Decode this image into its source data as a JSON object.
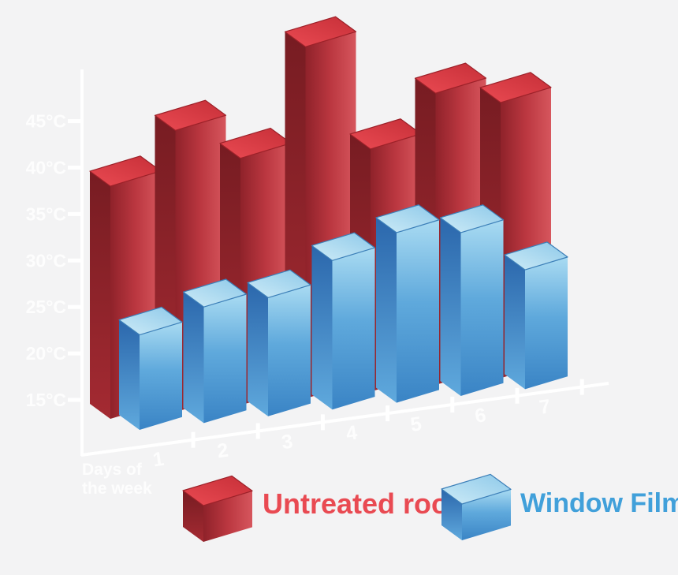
{
  "colors": {
    "background": "#f3f3f4",
    "axis": "#ffffff",
    "untreated_roof_red": "#cf3a43",
    "window_film_blue": "#4f9ed8",
    "legend_red_text": "#e94a52",
    "legend_blue_text": "#41a0da"
  },
  "chart_data": {
    "type": "bar",
    "projection": "3d-oblique",
    "title": "",
    "unit": "°C",
    "categories": [
      "1",
      "2",
      "3",
      "4",
      "5",
      "6",
      "7"
    ],
    "xlabel": "Days of the week",
    "xlabel_lines": [
      "Days of",
      "the week"
    ],
    "ylabel": "",
    "y_ticks": [
      "45°C",
      "40°C",
      "35°C",
      "30°C",
      "25°C",
      "20°C",
      "15°C"
    ],
    "ylim": [
      15,
      45
    ],
    "grid": false,
    "legend_position": "bottom",
    "series": [
      {
        "name": "Untreated roof",
        "color": "#cf3a43",
        "values": [
          38,
          44,
          41,
          53,
          42,
          48,
          47
        ]
      },
      {
        "name": "Window Film",
        "color": "#4f9ed8",
        "values": [
          22,
          25,
          26,
          30,
          33,
          33,
          29
        ]
      }
    ]
  }
}
